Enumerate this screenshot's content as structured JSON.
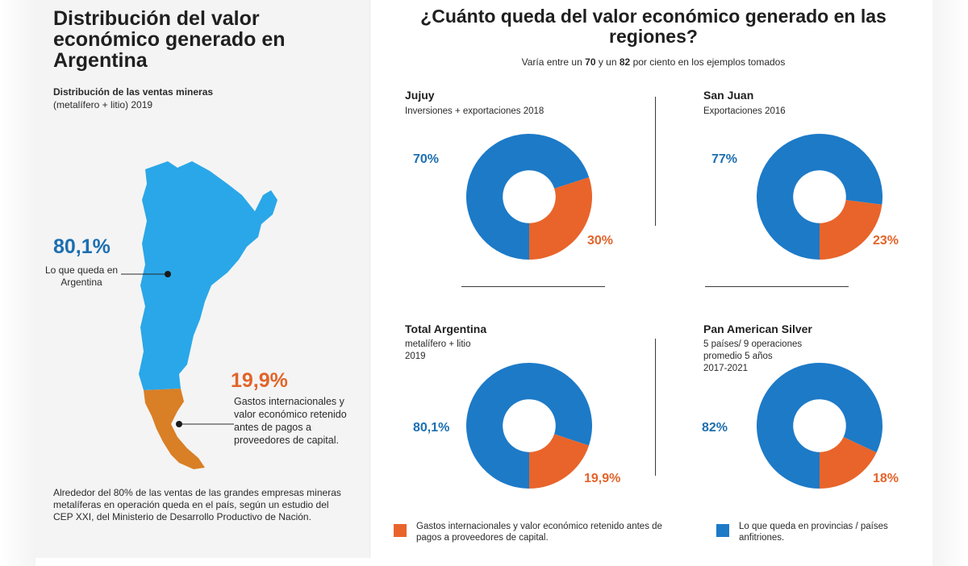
{
  "colors": {
    "blue": "#1d7ac7",
    "orange": "#e8642a",
    "map_blue": "#2aa7e8",
    "map_orange": "#d97f25"
  },
  "left": {
    "title": "Distribución del valor económico generado en Argentina",
    "subtitle_bold": "Distribución de las ventas mineras",
    "subtitle_rest": "(metalífero + litio) 2019",
    "remains_pct": "80,1%",
    "remains_note": "Lo que queda en Argentina",
    "external_pct": "19,9%",
    "external_note": "Gastos internacionales y valor económico retenido antes de pagos a proveedores de capital.",
    "footnote": "Alrededor del 80% de las ventas de las grandes empresas mineras metalíferas en operación queda en el país, según un estudio del CEP XXI, del Ministerio de Desarrollo Productivo de Nación."
  },
  "right": {
    "title": "¿Cuánto queda del valor económico generado en las regiones?",
    "subtitle_pre": "Varía entre un",
    "subtitle_low": "70",
    "subtitle_mid": "y un",
    "subtitle_high": "82",
    "subtitle_post": "por ciento en los ejemplos tomados"
  },
  "legend": {
    "orange_label": "Gastos internacionales y valor económico retenido antes de pagos a proveedores de capital.",
    "blue_label": "Lo que queda en provincias / países anfitriones."
  },
  "chart_data": [
    {
      "type": "pie",
      "donut": true,
      "title": "Jujuy",
      "subtitle": "Inversiones + exportaciones 2018",
      "series": [
        {
          "name": "Lo que queda en provincias / países anfitriones.",
          "value": 70,
          "label": "70%"
        },
        {
          "name": "Gastos internacionales y valor económico retenido antes de pagos a proveedores de capital.",
          "value": 30,
          "label": "30%"
        }
      ]
    },
    {
      "type": "pie",
      "donut": true,
      "title": "San Juan",
      "subtitle": "Exportaciones 2016",
      "series": [
        {
          "name": "Lo que queda en provincias / países anfitriones.",
          "value": 77,
          "label": "77%"
        },
        {
          "name": "Gastos internacionales y valor económico retenido antes de pagos a proveedores de capital.",
          "value": 23,
          "label": "23%"
        }
      ]
    },
    {
      "type": "pie",
      "donut": true,
      "title": "Total Argentina",
      "subtitle": "metalífero + litio\n2019",
      "series": [
        {
          "name": "Lo que queda en provincias / países anfitriones.",
          "value": 80.1,
          "label": "80,1%"
        },
        {
          "name": "Gastos internacionales y valor económico retenido antes de pagos a proveedores de capital.",
          "value": 19.9,
          "label": "19,9%"
        }
      ]
    },
    {
      "type": "pie",
      "donut": true,
      "title": "Pan American Silver",
      "subtitle": "5 países/ 9 operaciones\npromedio 5 años\n2017-2021",
      "series": [
        {
          "name": "Lo que queda en provincias / países anfitriones.",
          "value": 82,
          "label": "82%"
        },
        {
          "name": "Gastos internacionales y valor económico retenido antes de pagos a proveedores de capital.",
          "value": 18,
          "label": "18%"
        }
      ]
    }
  ]
}
